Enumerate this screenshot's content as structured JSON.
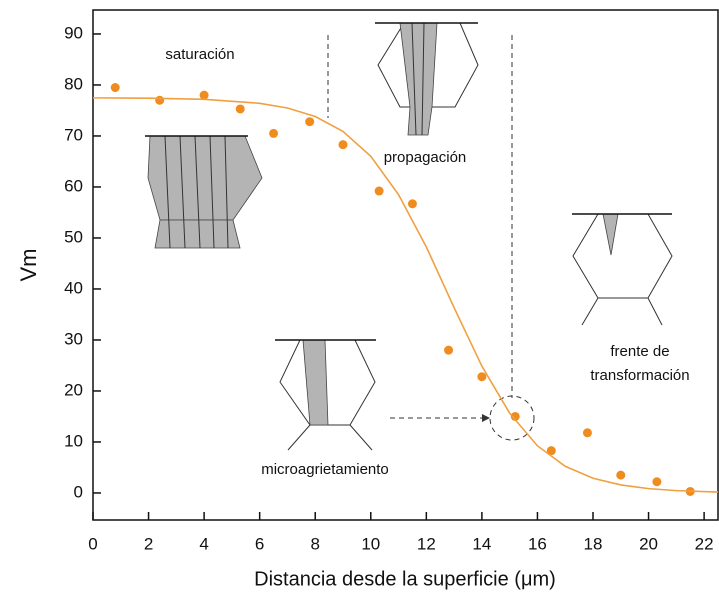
{
  "chart_data": {
    "type": "scatter",
    "x_label": "Distancia desde la superficie (μm)",
    "y_label": "Vm",
    "xlim": [
      0,
      22.5
    ],
    "ylim": [
      -5.3,
      94.7
    ],
    "xticks": [
      0,
      2,
      4,
      6,
      8,
      10,
      12,
      14,
      16,
      18,
      20,
      22
    ],
    "yticks": [
      0,
      10,
      20,
      30,
      40,
      50,
      60,
      70,
      80,
      90
    ],
    "series": [
      {
        "type": "scatter",
        "color": "#f08c1e",
        "x": [
          0.8,
          2.4,
          4,
          5.3,
          6.5,
          7.8,
          9,
          10.3,
          11.5,
          12.8,
          14,
          15.2,
          16.5,
          17.8,
          19,
          20.3,
          21.5
        ],
        "values": [
          79.5,
          77,
          78,
          75.3,
          70.5,
          72.8,
          68.3,
          59.2,
          56.7,
          28,
          22.8,
          15,
          8.3,
          11.8,
          3.5,
          2.2,
          0.3
        ]
      },
      {
        "type": "line",
        "color": "#f0a040",
        "x": [
          0,
          2,
          4,
          6,
          7,
          8,
          9,
          10,
          11,
          12,
          13,
          14,
          15,
          16,
          17,
          18,
          19,
          20,
          21,
          22.5
        ],
        "values": [
          77.47,
          77.41,
          77.18,
          76.41,
          75.49,
          73.82,
          70.9,
          66.02,
          58.5,
          48.24,
          36.33,
          24.86,
          15.64,
          9.24,
          5.24,
          2.89,
          1.58,
          0.85,
          0.46,
          0.18
        ]
      }
    ],
    "annotations": [
      "saturación",
      "propagación",
      "microagrietamiento",
      "frente de transformación"
    ]
  }
}
